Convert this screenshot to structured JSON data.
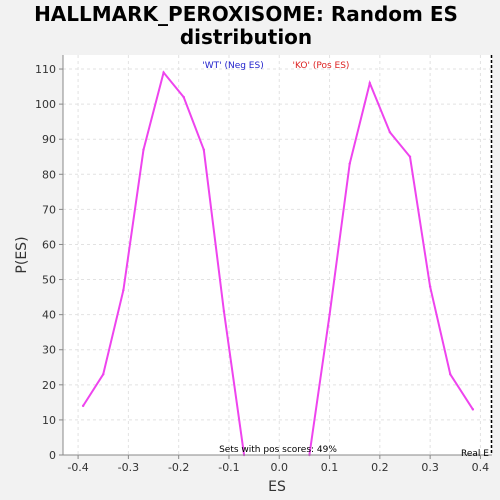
{
  "chart_data": {
    "type": "line",
    "title_lines": [
      "HALLMARK_PEROXISOME: Random ES",
      "distribution"
    ],
    "xlabel": "ES",
    "ylabel": "P(ES)",
    "xlim": [
      -0.43,
      0.423
    ],
    "ylim": [
      0,
      114
    ],
    "xticks": [
      -0.4,
      -0.3,
      -0.2,
      -0.1,
      0.0,
      0.1,
      0.2,
      0.3,
      0.4
    ],
    "xtick_labels": [
      "-0.4",
      "-0.3",
      "-0.2",
      "-0.1",
      "0.0",
      "0.1",
      "0.2",
      "0.3",
      "0.4"
    ],
    "yticks": [
      0,
      10,
      20,
      30,
      40,
      50,
      60,
      70,
      80,
      90,
      100,
      110
    ],
    "ytick_labels": [
      "0",
      "10",
      "20",
      "30",
      "40",
      "50",
      "60",
      "70",
      "80",
      "90",
      "100",
      "110"
    ],
    "grid": true,
    "series": [
      {
        "name": "'WT' (Neg ES)",
        "color": "#ee44ee",
        "x": [
          -0.39,
          -0.35,
          -0.31,
          -0.27,
          -0.23,
          -0.19,
          -0.15,
          -0.11,
          -0.07
        ],
        "y": [
          14,
          23,
          47,
          87,
          109,
          102,
          87,
          41,
          0
        ]
      },
      {
        "name": "'KO' (Pos ES)",
        "color": "#ee44ee",
        "x": [
          0.06,
          0.1,
          0.14,
          0.18,
          0.22,
          0.26,
          0.3,
          0.34,
          0.385
        ],
        "y": [
          0,
          40,
          83,
          106,
          92,
          85,
          48,
          23,
          13
        ]
      }
    ],
    "legend": [
      {
        "label": "'WT' (Neg ES)",
        "color": "#2222cc"
      },
      {
        "label": "'KO' (Pos ES)",
        "color": "#dd2222"
      }
    ],
    "legend_placement": "top-center",
    "annotation": "Sets with pos scores: 49%",
    "real_es_label": "Real E",
    "real_es_x": 0.423
  }
}
